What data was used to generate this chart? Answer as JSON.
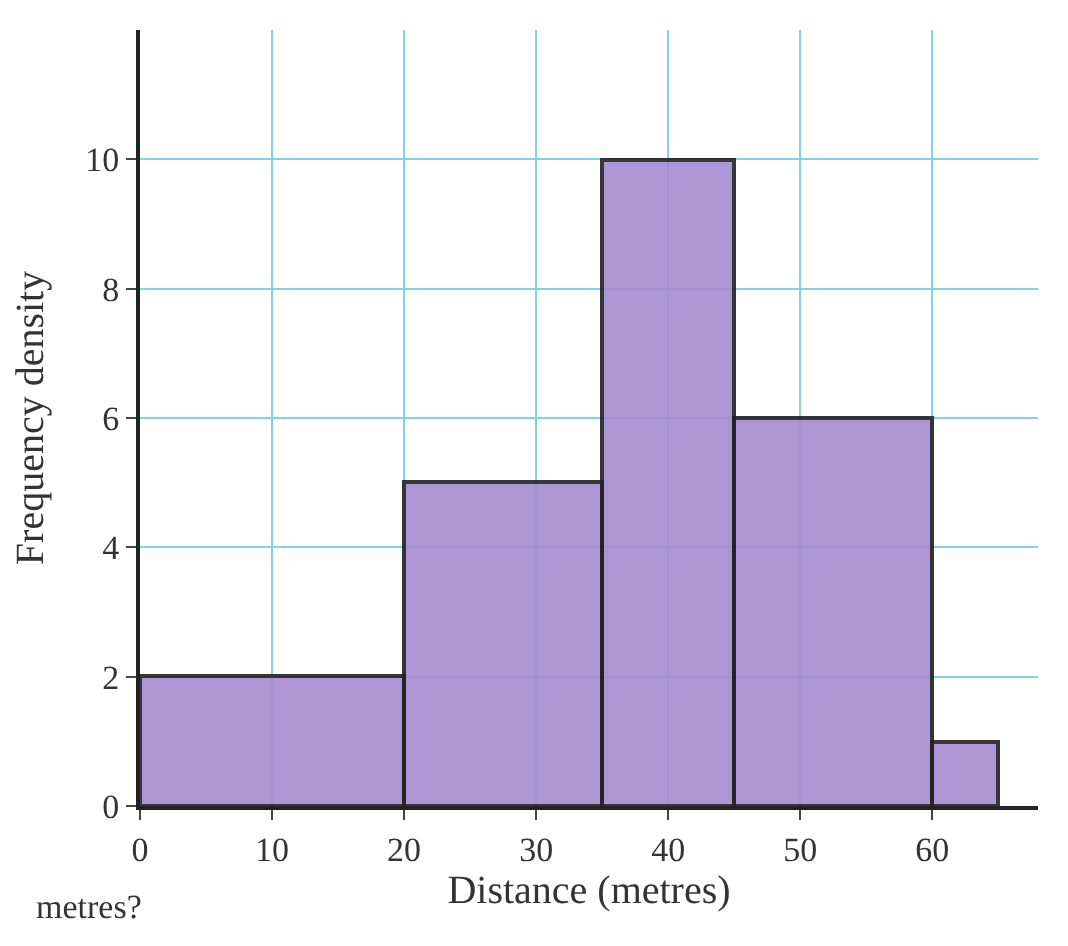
{
  "chart_data": {
    "type": "histogram",
    "xlabel": "Distance (metres)",
    "ylabel": "Frequency density",
    "bins": [
      0,
      20,
      35,
      45,
      60,
      65
    ],
    "values": [
      2,
      5,
      10,
      6,
      1
    ],
    "color": "#a68ad0",
    "xlim": [
      0,
      68
    ],
    "ylim": [
      0,
      12
    ],
    "xticks": [
      0,
      10,
      20,
      30,
      40,
      50,
      60
    ],
    "yticks": [
      0,
      2,
      4,
      6,
      8,
      10
    ],
    "grid": true,
    "annotations": [
      "metres?"
    ]
  }
}
